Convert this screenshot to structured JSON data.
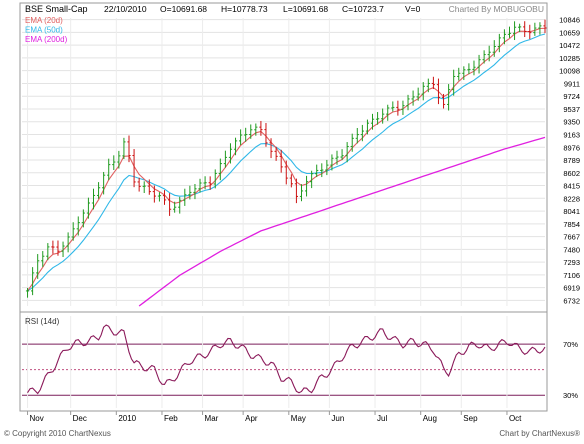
{
  "header": {
    "symbol": "BSE Small-Cap",
    "date": "22/10/2010",
    "open": "O=10691.68",
    "high": "H=10778.73",
    "low": "L=10691.68",
    "close": "C=10723.7",
    "volume": "V=0",
    "credit": "Charted By MOBUGOBU"
  },
  "footer": {
    "copyright": "© Copyright 2010 ChartNexus",
    "brand": "Chart by ChartNexus®"
  },
  "chart_data": [
    {
      "type": "line",
      "panel": "price",
      "legend": [
        {
          "label": "EMA (20d)",
          "color": "#e06060"
        },
        {
          "label": "EMA (50d)",
          "color": "#30b8e8"
        },
        {
          "label": "EMA (200d)",
          "color": "#e020e0"
        }
      ],
      "yticks": [
        6732,
        6919,
        7106,
        7293,
        7480,
        7667,
        7854,
        8041,
        8228,
        8415,
        8602,
        8789,
        8976,
        9163,
        9350,
        9537,
        9724,
        9911,
        10098,
        10285,
        10472,
        10659,
        10846
      ],
      "ylim": [
        6650,
        10870
      ],
      "xticks": [
        "Nov",
        "Dec",
        "2010",
        "Feb",
        "Mar",
        "Apr",
        "May",
        "Jun",
        "Jul",
        "Aug",
        "Sep",
        "Oct"
      ],
      "xtick_weeks": [
        0,
        8.5,
        17.5,
        26.5,
        34.5,
        42.5,
        51.5,
        59.5,
        68.5,
        77.5,
        85.5,
        94.5
      ],
      "xlim": [
        -0.5,
        102
      ],
      "weeks": 102,
      "close_keypoints": [
        [
          0,
          6850
        ],
        [
          2,
          7300
        ],
        [
          4,
          7500
        ],
        [
          6,
          7500
        ],
        [
          8,
          7650
        ],
        [
          10,
          7900
        ],
        [
          12,
          8100
        ],
        [
          14,
          8400
        ],
        [
          16,
          8700
        ],
        [
          18,
          8900
        ],
        [
          19,
          9050
        ],
        [
          20,
          8850
        ],
        [
          21,
          8500
        ],
        [
          22,
          8400
        ],
        [
          24,
          8300
        ],
        [
          26,
          8250
        ],
        [
          28,
          8100
        ],
        [
          30,
          8200
        ],
        [
          32,
          8350
        ],
        [
          34,
          8400
        ],
        [
          36,
          8450
        ],
        [
          38,
          8700
        ],
        [
          40,
          9000
        ],
        [
          42,
          9150
        ],
        [
          44,
          9250
        ],
        [
          46,
          9200
        ],
        [
          48,
          8900
        ],
        [
          50,
          8700
        ],
        [
          52,
          8450
        ],
        [
          53,
          8250
        ],
        [
          55,
          8500
        ],
        [
          57,
          8600
        ],
        [
          59,
          8700
        ],
        [
          62,
          8900
        ],
        [
          65,
          9200
        ],
        [
          68,
          9350
        ],
        [
          70,
          9450
        ],
        [
          72,
          9550
        ],
        [
          74,
          9600
        ],
        [
          76,
          9750
        ],
        [
          78,
          9850
        ],
        [
          80,
          9900
        ],
        [
          81,
          9700
        ],
        [
          82,
          9550
        ],
        [
          84,
          10050
        ],
        [
          86,
          10100
        ],
        [
          88,
          10200
        ],
        [
          90,
          10300
        ],
        [
          92,
          10450
        ],
        [
          94,
          10600
        ],
        [
          96,
          10750
        ],
        [
          98,
          10700
        ],
        [
          100,
          10723.7
        ]
      ],
      "ema200_keypoints": [
        [
          22,
          6650
        ],
        [
          30,
          7100
        ],
        [
          38,
          7450
        ],
        [
          46,
          7750
        ],
        [
          54,
          7950
        ],
        [
          62,
          8150
        ],
        [
          70,
          8350
        ],
        [
          78,
          8550
        ],
        [
          86,
          8750
        ],
        [
          94,
          8950
        ],
        [
          102,
          9120
        ]
      ],
      "bar_range": 110
    },
    {
      "type": "line",
      "panel": "rsi",
      "legend": [
        {
          "label": "RSI (14d)",
          "color": "#8b1a5a"
        }
      ],
      "ylim": [
        20,
        92
      ],
      "yticks": [
        70,
        30
      ],
      "ytick_labels": [
        "70%",
        "30%"
      ],
      "upper": 70,
      "lower": 30,
      "mid": 50,
      "rsi_keypoints": [
        [
          0,
          32
        ],
        [
          2,
          34
        ],
        [
          4,
          45
        ],
        [
          6,
          57
        ],
        [
          8,
          68
        ],
        [
          10,
          71
        ],
        [
          12,
          72
        ],
        [
          14,
          76
        ],
        [
          15,
          83
        ],
        [
          17,
          80
        ],
        [
          19,
          78
        ],
        [
          21,
          55
        ],
        [
          23,
          52
        ],
        [
          25,
          50
        ],
        [
          27,
          38
        ],
        [
          28,
          40
        ],
        [
          30,
          48
        ],
        [
          32,
          57
        ],
        [
          34,
          60
        ],
        [
          36,
          64
        ],
        [
          38,
          70
        ],
        [
          40,
          72
        ],
        [
          42,
          68
        ],
        [
          44,
          62
        ],
        [
          46,
          58
        ],
        [
          48,
          55
        ],
        [
          50,
          44
        ],
        [
          52,
          40
        ],
        [
          54,
          32
        ],
        [
          56,
          35
        ],
        [
          58,
          44
        ],
        [
          60,
          50
        ],
        [
          62,
          60
        ],
        [
          64,
          68
        ],
        [
          66,
          72
        ],
        [
          68,
          76
        ],
        [
          70,
          80
        ],
        [
          72,
          74
        ],
        [
          74,
          70
        ],
        [
          76,
          72
        ],
        [
          78,
          70
        ],
        [
          80,
          66
        ],
        [
          82,
          50
        ],
        [
          83,
          48
        ],
        [
          85,
          62
        ],
        [
          87,
          68
        ],
        [
          89,
          70
        ],
        [
          91,
          66
        ],
        [
          93,
          70
        ],
        [
          95,
          72
        ],
        [
          97,
          66
        ],
        [
          99,
          64
        ],
        [
          101,
          66
        ]
      ]
    }
  ]
}
